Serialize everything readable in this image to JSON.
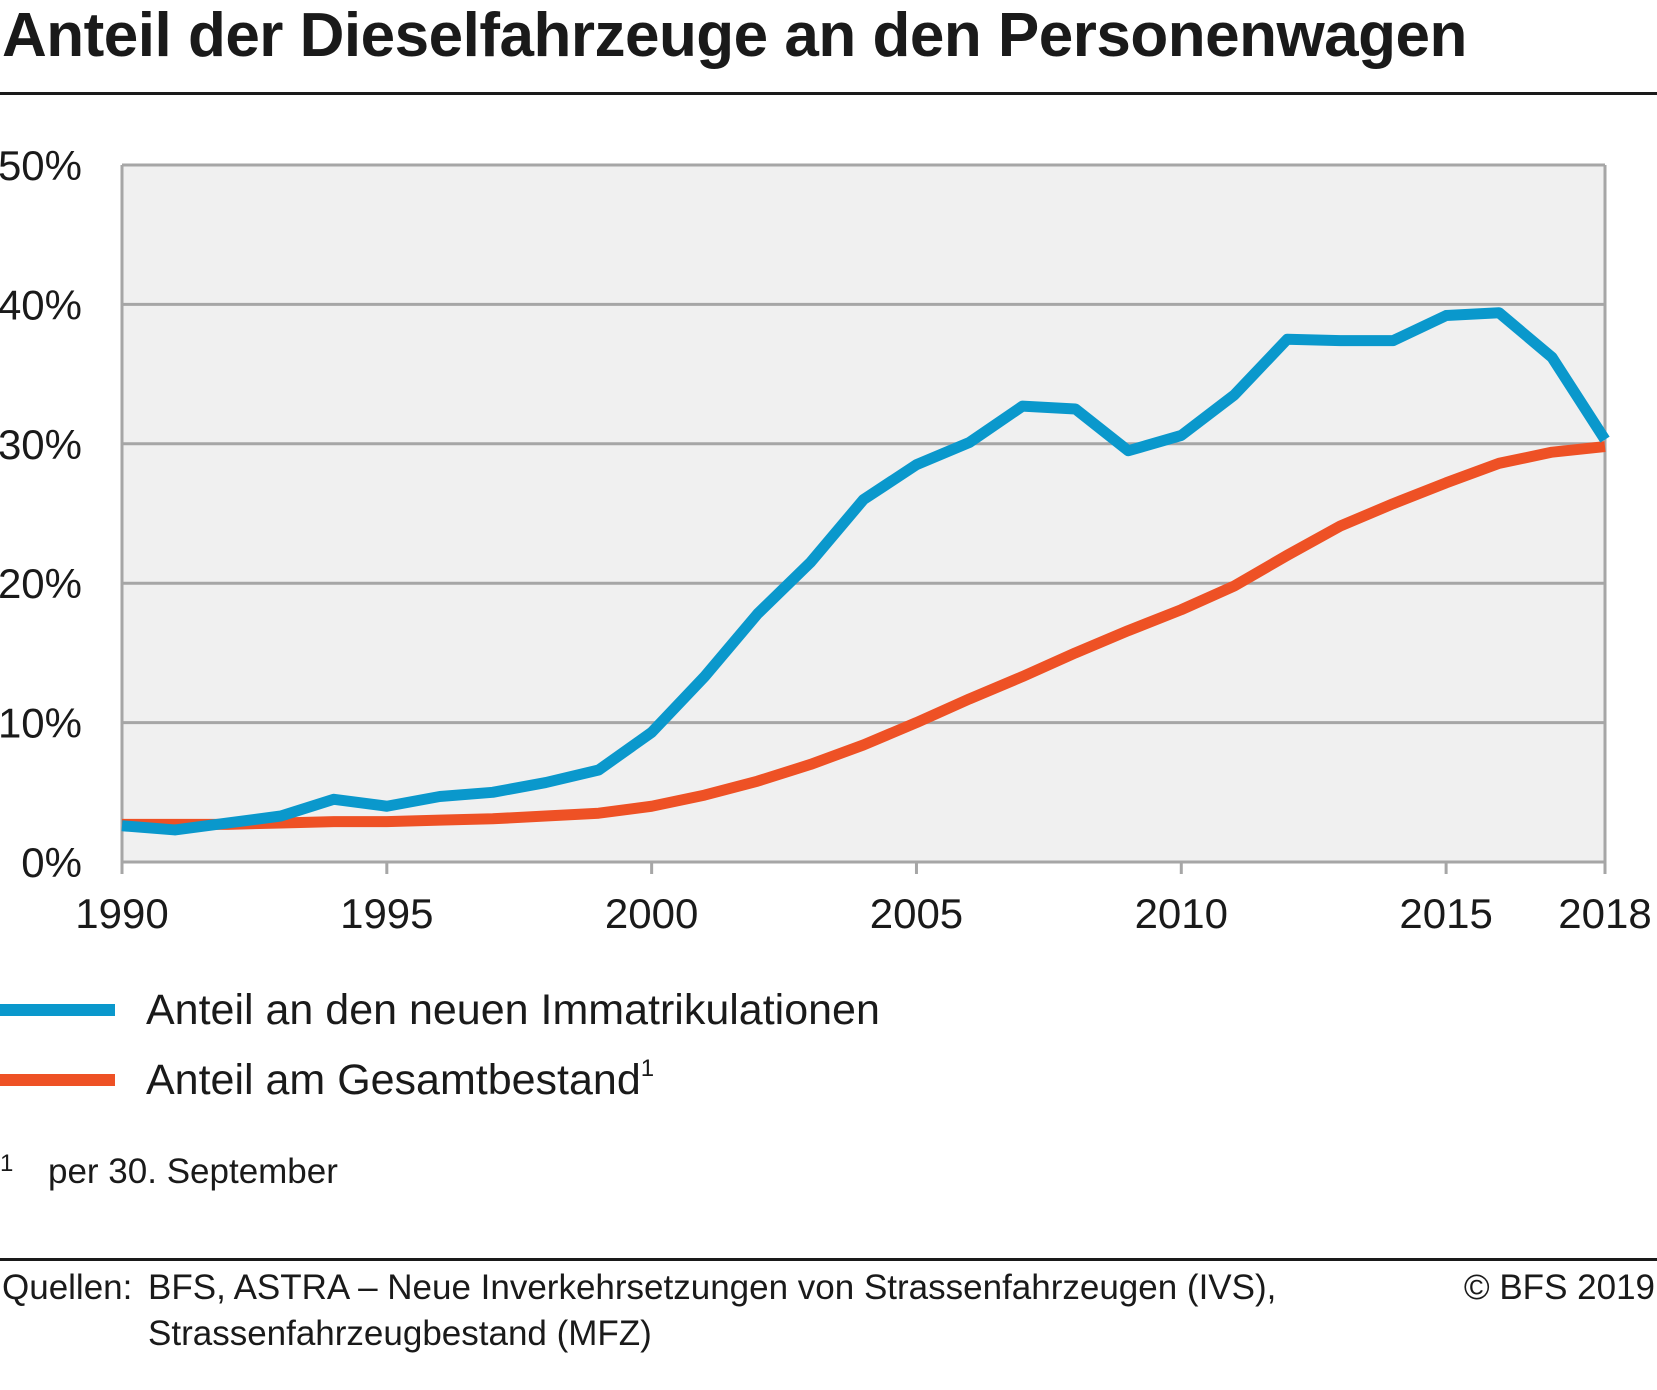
{
  "title": "Anteil der Dieselfahrzeuge an den Personenwagen",
  "chart_data": {
    "type": "line",
    "x": [
      1990,
      1991,
      1992,
      1993,
      1994,
      1995,
      1996,
      1997,
      1998,
      1999,
      2000,
      2001,
      2002,
      2003,
      2004,
      2005,
      2006,
      2007,
      2008,
      2009,
      2010,
      2011,
      2012,
      2013,
      2014,
      2015,
      2016,
      2017,
      2018
    ],
    "x_ticks": [
      1990,
      1995,
      2000,
      2005,
      2010,
      2015,
      2018
    ],
    "xlim": [
      1990,
      2018
    ],
    "ylim": [
      0,
      50
    ],
    "y_ticks": [
      0,
      10,
      20,
      30,
      40,
      50
    ],
    "y_tick_labels": [
      "0%",
      "10%",
      "20%",
      "30%",
      "40%",
      "50%"
    ],
    "grid": true,
    "plot_background": "#f0f0f0",
    "series": [
      {
        "name": "Anteil an den neuen Immatrikulationen",
        "color": "#0a98cc",
        "values": [
          2.6,
          2.3,
          2.8,
          3.3,
          4.5,
          4.0,
          4.7,
          5.0,
          5.7,
          6.6,
          9.3,
          13.3,
          17.8,
          21.5,
          26.0,
          28.5,
          30.1,
          32.7,
          32.5,
          29.5,
          30.6,
          33.5,
          37.5,
          37.4,
          37.4,
          39.2,
          39.4,
          36.2,
          30.3
        ]
      },
      {
        "name": "Anteil am Gesamtbestand",
        "footnote_ref": "1",
        "color": "#ee5125",
        "values": [
          2.7,
          2.7,
          2.7,
          2.8,
          2.9,
          2.9,
          3.0,
          3.1,
          3.3,
          3.5,
          4.0,
          4.8,
          5.8,
          7.0,
          8.4,
          10.0,
          11.7,
          13.3,
          15.0,
          16.6,
          18.1,
          19.8,
          22.0,
          24.1,
          25.7,
          27.2,
          28.6,
          29.4,
          29.8
        ]
      }
    ]
  },
  "footnote": {
    "mark": "1",
    "text": "per 30. September"
  },
  "source": {
    "label": "Quellen:",
    "line1": "BFS, ASTRA – Neue Inverkehrsetzungen von Strassenfahrzeugen (IVS),",
    "line2": "Strassenfahrzeugbestand (MFZ)"
  },
  "copyright": "© BFS 2019"
}
